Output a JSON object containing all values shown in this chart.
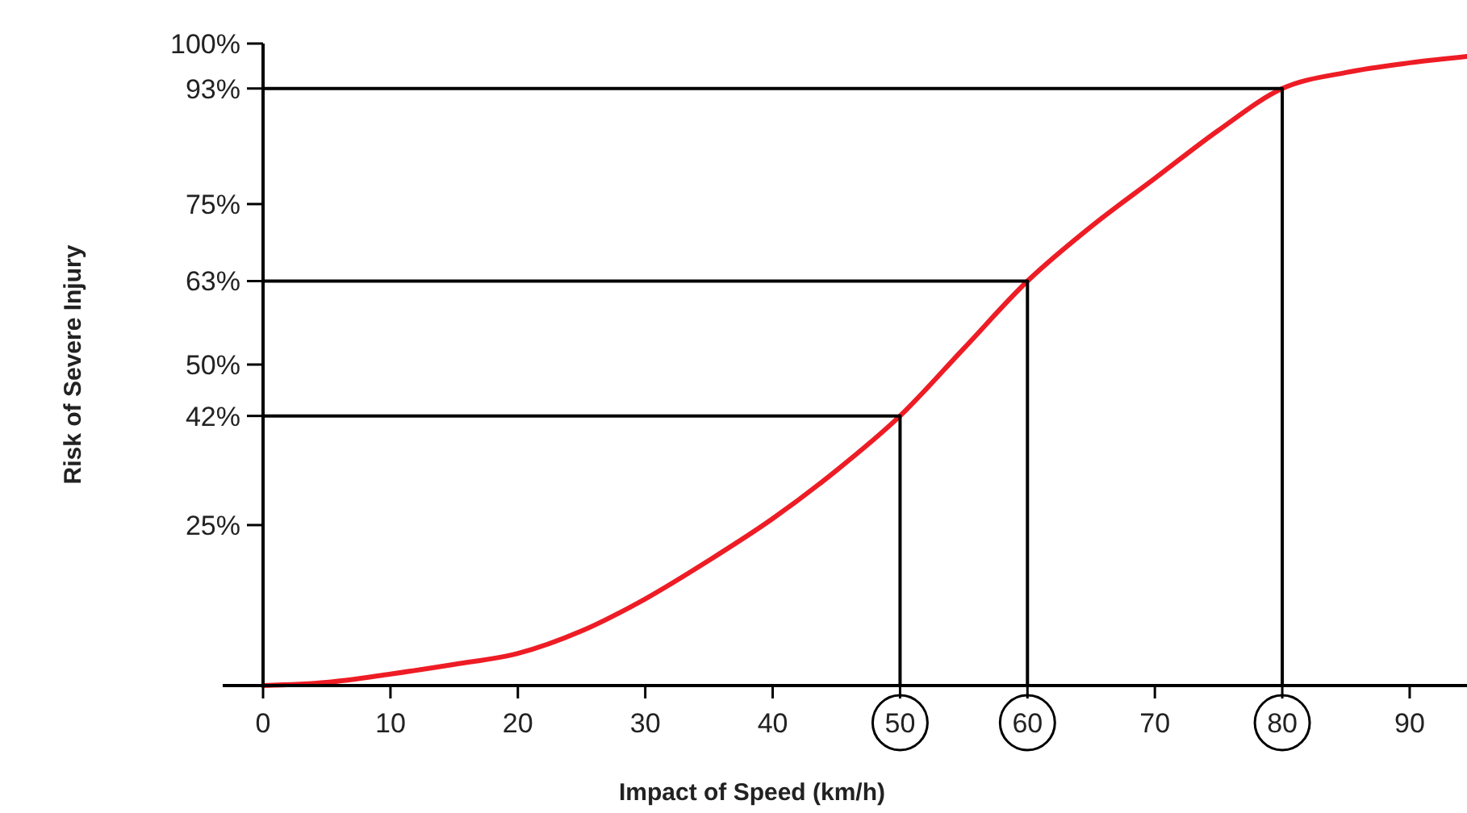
{
  "chart_data": {
    "type": "line",
    "xlabel": "Impact of Speed (km/h)",
    "ylabel": "Risk of Severe Injury",
    "xlim": [
      0,
      94.5
    ],
    "xticks": [
      0,
      10,
      20,
      30,
      40,
      50,
      60,
      70,
      80,
      90
    ],
    "ylim": [
      0,
      100
    ],
    "yticks": [
      {
        "value": 25,
        "label": "25%"
      },
      {
        "value": 42,
        "label": "42%"
      },
      {
        "value": 50,
        "label": "50%"
      },
      {
        "value": 63,
        "label": "63%"
      },
      {
        "value": 75,
        "label": "75%"
      },
      {
        "value": 93,
        "label": "93%"
      },
      {
        "value": 100,
        "label": "100%"
      }
    ],
    "grid": false,
    "marker": "none",
    "line_style": "solid",
    "x": [
      0,
      5,
      10,
      15,
      20,
      25,
      30,
      35,
      40,
      45,
      50,
      55,
      60,
      65,
      70,
      75,
      80,
      85,
      90,
      94.5
    ],
    "series": [
      {
        "color": "#ee1c25",
        "values": [
          0,
          0.5,
          1.8,
          3.3,
          5,
          8.5,
          13.5,
          19.5,
          26,
          33.5,
          42,
          52.5,
          63,
          71.5,
          79,
          86.5,
          93,
          95.5,
          97,
          98
        ]
      },
      {
        "type": "line",
        "color": "#000000",
        "x": [
          0,
          50,
          50
        ],
        "values": [
          42,
          42,
          0
        ]
      },
      {
        "type": "line",
        "color": "#000000",
        "x": [
          0,
          60,
          60
        ],
        "values": [
          63,
          63,
          0
        ]
      },
      {
        "type": "line",
        "color": "#000000",
        "x": [
          0,
          80,
          80
        ],
        "values": [
          93,
          93,
          0
        ]
      }
    ]
  }
}
